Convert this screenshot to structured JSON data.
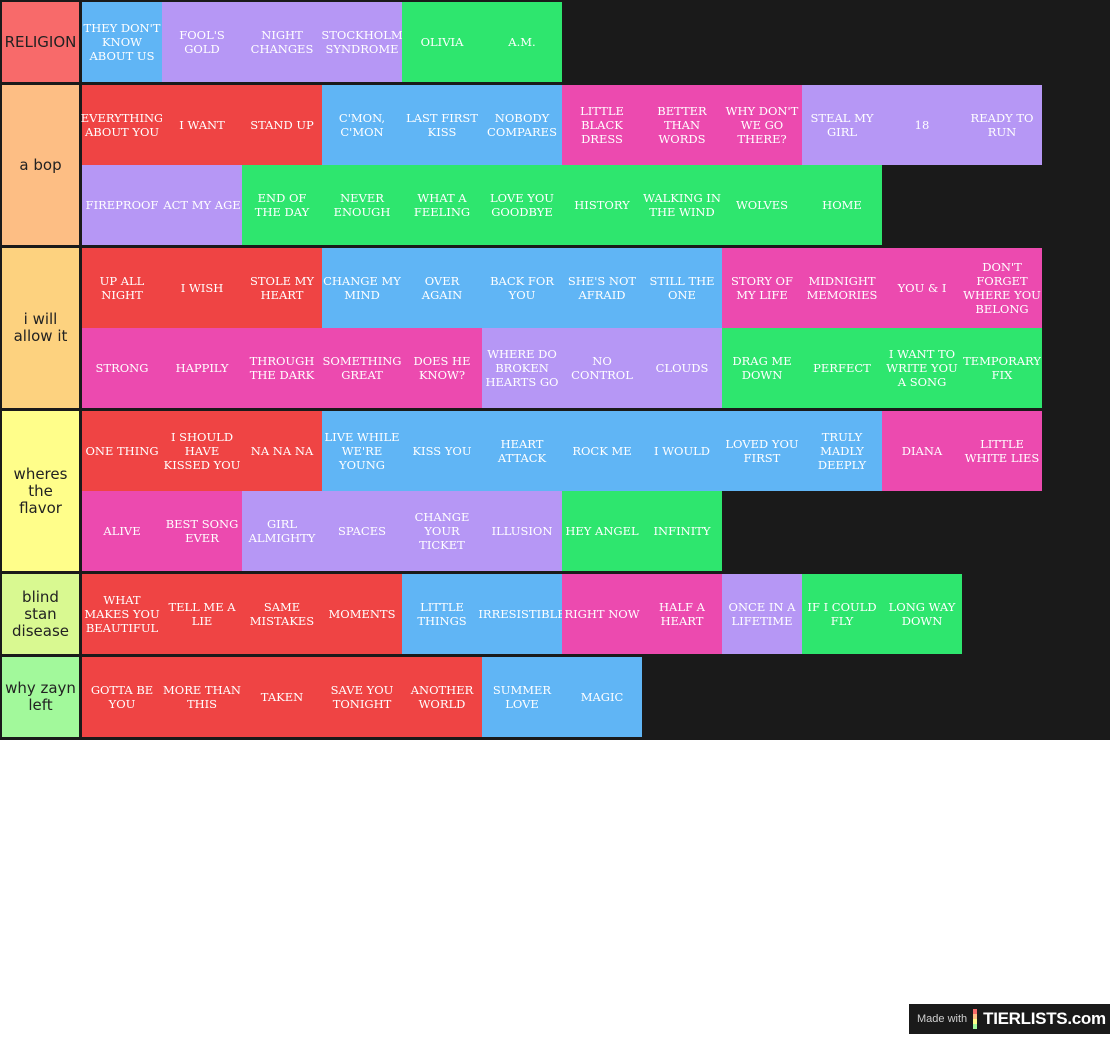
{
  "colors": {
    "red": "#ef4444",
    "blue": "#60b5f5",
    "purple": "#b697f5",
    "green": "#2ee66e",
    "pink": "#ec4aaf",
    "background": "#1a1a1a"
  },
  "tiers": [
    {
      "label": "RELIGION",
      "color": "#f86a6a",
      "rows": [
        [
          [
            "THEY DON'T KNOW ABOUT US",
            "blue"
          ],
          [
            "FOOL'S GOLD",
            "purple"
          ],
          [
            "NIGHT CHANGES",
            "purple"
          ],
          [
            "STOCKHOLM SYNDROME",
            "purple"
          ],
          [
            "OLIVIA",
            "green"
          ],
          [
            "A.M.",
            "green"
          ]
        ]
      ]
    },
    {
      "label": "a bop",
      "color": "#fdbe84",
      "rows": [
        [
          [
            "EVERYTHING ABOUT YOU",
            "red"
          ],
          [
            "I WANT",
            "red"
          ],
          [
            "STAND UP",
            "red"
          ],
          [
            "C'MON, C'MON",
            "blue"
          ],
          [
            "LAST FIRST KISS",
            "blue"
          ],
          [
            "NOBODY COMPARES",
            "blue"
          ],
          [
            "LITTLE BLACK DRESS",
            "pink"
          ],
          [
            "BETTER THAN WORDS",
            "pink"
          ],
          [
            "WHY DON'T WE GO THERE?",
            "pink"
          ],
          [
            "STEAL MY GIRL",
            "purple"
          ],
          [
            "18",
            "purple"
          ],
          [
            "READY TO RUN",
            "purple"
          ]
        ],
        [
          [
            "FIREPROOF",
            "purple"
          ],
          [
            "ACT MY AGE",
            "purple"
          ],
          [
            "END OF THE DAY",
            "green"
          ],
          [
            "NEVER ENOUGH",
            "green"
          ],
          [
            "WHAT A FEELING",
            "green"
          ],
          [
            "LOVE YOU GOODBYE",
            "green"
          ],
          [
            "HISTORY",
            "green"
          ],
          [
            "WALKING IN THE WIND",
            "green"
          ],
          [
            "WOLVES",
            "green"
          ],
          [
            "HOME",
            "green"
          ]
        ]
      ]
    },
    {
      "label": "i will allow it",
      "color": "#fdd27f",
      "rows": [
        [
          [
            "UP ALL NIGHT",
            "red"
          ],
          [
            "I WISH",
            "red"
          ],
          [
            "STOLE MY HEART",
            "red"
          ],
          [
            "CHANGE MY MIND",
            "blue"
          ],
          [
            "OVER AGAIN",
            "blue"
          ],
          [
            "BACK FOR YOU",
            "blue"
          ],
          [
            "SHE'S NOT AFRAID",
            "blue"
          ],
          [
            "STILL THE ONE",
            "blue"
          ],
          [
            "STORY OF MY LIFE",
            "pink"
          ],
          [
            "MIDNIGHT MEMORIES",
            "pink"
          ],
          [
            "YOU & I",
            "pink"
          ],
          [
            "DON'T FORGET WHERE YOU BELONG",
            "pink"
          ]
        ],
        [
          [
            "STRONG",
            "pink"
          ],
          [
            "HAPPILY",
            "pink"
          ],
          [
            "THROUGH THE DARK",
            "pink"
          ],
          [
            "SOMETHING GREAT",
            "pink"
          ],
          [
            "DOES HE KNOW?",
            "pink"
          ],
          [
            "WHERE DO BROKEN HEARTS GO",
            "purple"
          ],
          [
            "NO CONTROL",
            "purple"
          ],
          [
            "CLOUDS",
            "purple"
          ],
          [
            "DRAG ME DOWN",
            "green"
          ],
          [
            "PERFECT",
            "green"
          ],
          [
            "I WANT TO WRITE YOU A SONG",
            "green"
          ],
          [
            "TEMPORARY FIX",
            "green"
          ]
        ]
      ]
    },
    {
      "label": "wheres the flavor",
      "color": "#fffe8a",
      "rows": [
        [
          [
            "ONE THING",
            "red"
          ],
          [
            "I SHOULD HAVE KISSED YOU",
            "red"
          ],
          [
            "NA NA NA",
            "red"
          ],
          [
            "LIVE WHILE WE'RE YOUNG",
            "blue"
          ],
          [
            "KISS YOU",
            "blue"
          ],
          [
            "HEART ATTACK",
            "blue"
          ],
          [
            "ROCK ME",
            "blue"
          ],
          [
            "I WOULD",
            "blue"
          ],
          [
            "LOVED YOU FIRST",
            "blue"
          ],
          [
            "TRULY MADLY DEEPLY",
            "blue"
          ],
          [
            "DIANA",
            "pink"
          ],
          [
            "LITTLE WHITE LIES",
            "pink"
          ]
        ],
        [
          [
            "ALIVE",
            "pink"
          ],
          [
            "BEST SONG EVER",
            "pink"
          ],
          [
            "GIRL ALMIGHTY",
            "purple"
          ],
          [
            "SPACES",
            "purple"
          ],
          [
            "CHANGE YOUR TICKET",
            "purple"
          ],
          [
            "ILLUSION",
            "purple"
          ],
          [
            "HEY ANGEL",
            "green"
          ],
          [
            "INFINITY",
            "green"
          ]
        ]
      ]
    },
    {
      "label": "blind stan disease",
      "color": "#d9f991",
      "rows": [
        [
          [
            "WHAT MAKES YOU BEAUTIFUL",
            "red"
          ],
          [
            "TELL ME A LIE",
            "red"
          ],
          [
            "SAME MISTAKES",
            "red"
          ],
          [
            "MOMENTS",
            "red"
          ],
          [
            "LITTLE THINGS",
            "blue"
          ],
          [
            "IRRESISTIBLE",
            "blue"
          ],
          [
            "RIGHT NOW",
            "pink"
          ],
          [
            "HALF A HEART",
            "pink"
          ],
          [
            "ONCE IN A LIFETIME",
            "purple"
          ],
          [
            "IF I COULD FLY",
            "green"
          ],
          [
            "LONG WAY DOWN",
            "green"
          ]
        ]
      ]
    },
    {
      "label": "why zayn left",
      "color": "#a2f99b",
      "rows": [
        [
          [
            "GOTTA BE YOU",
            "red"
          ],
          [
            "MORE THAN THIS",
            "red"
          ],
          [
            "TAKEN",
            "red"
          ],
          [
            "SAVE YOU TONIGHT",
            "red"
          ],
          [
            "ANOTHER WORLD",
            "red"
          ],
          [
            "SUMMER LOVE",
            "blue"
          ],
          [
            "MAGIC",
            "blue"
          ]
        ]
      ]
    }
  ],
  "watermark": {
    "made_with": "Made with",
    "brand": "TIERLISTS.com"
  }
}
